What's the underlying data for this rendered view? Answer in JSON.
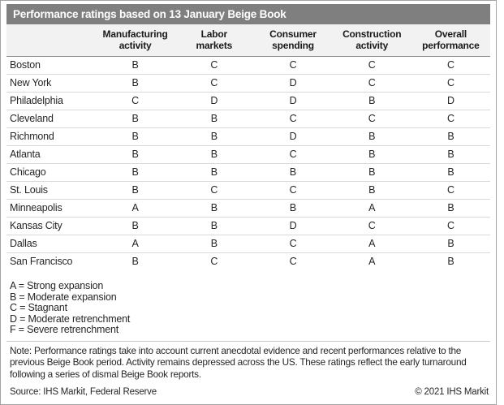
{
  "title": "Performance ratings based on 13 January Beige Book",
  "chart_data": {
    "type": "table",
    "title": "Performance ratings based on 13 January Beige Book",
    "columns": [
      "Manufacturing\nactivity",
      "Labor\nmarkets",
      "Consumer\nspending",
      "Construction\nactivity",
      "Overall\nperformance"
    ],
    "districts": [
      "Boston",
      "New York",
      "Philadelphia",
      "Cleveland",
      "Richmond",
      "Atlanta",
      "Chicago",
      "St. Louis",
      "Minneapolis",
      "Kansas City",
      "Dallas",
      "San Francisco"
    ],
    "rows": [
      [
        "B",
        "C",
        "C",
        "C",
        "C"
      ],
      [
        "B",
        "C",
        "D",
        "C",
        "C"
      ],
      [
        "C",
        "D",
        "D",
        "B",
        "D"
      ],
      [
        "B",
        "B",
        "C",
        "C",
        "C"
      ],
      [
        "B",
        "B",
        "D",
        "B",
        "B"
      ],
      [
        "B",
        "B",
        "C",
        "B",
        "B"
      ],
      [
        "B",
        "B",
        "B",
        "B",
        "B"
      ],
      [
        "B",
        "C",
        "C",
        "B",
        "C"
      ],
      [
        "A",
        "B",
        "B",
        "A",
        "B"
      ],
      [
        "B",
        "B",
        "D",
        "C",
        "C"
      ],
      [
        "A",
        "B",
        "C",
        "A",
        "B"
      ],
      [
        "B",
        "C",
        "C",
        "A",
        "B"
      ]
    ],
    "legend": [
      "A = Strong expansion",
      "B = Moderate expansion",
      "C = Stagnant",
      "D = Moderate retrenchment",
      "F = Severe retrenchment"
    ],
    "note": "Note: Performance ratings take into account current anecdotal evidence and recent performances relative to the previous Beige Book period. Activity remains depressed across the US. These ratings reflect the early turnaround following a series of dismal Beige Book reports.",
    "source": "Source: IHS Markit, Federal Reserve",
    "copyright": "© 2021 IHS Markit"
  },
  "colors": {
    "title_bar_bg": "#7f7f7f",
    "title_text": "#ffffff",
    "header_bg": "#f2f2f2",
    "header_divider": "#8c8c8c",
    "row_divider": "#d9d9d9",
    "body_text": "#262626",
    "frame_border": "#a3a3a3"
  }
}
